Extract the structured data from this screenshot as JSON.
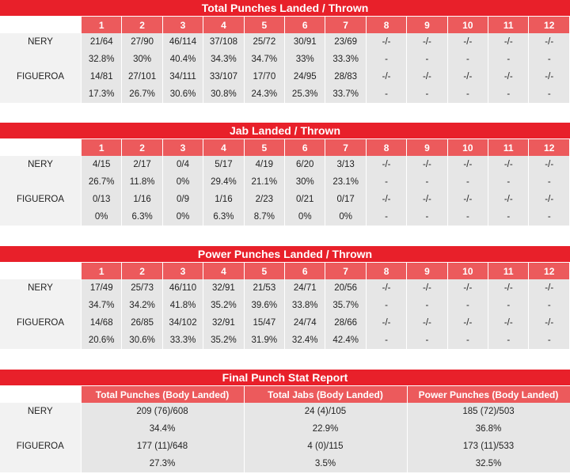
{
  "sections": [
    {
      "title": "Total Punches Landed / Thrown",
      "rounds": [
        "1",
        "2",
        "3",
        "4",
        "5",
        "6",
        "7",
        "8",
        "9",
        "10",
        "11",
        "12"
      ],
      "rows": [
        {
          "name": "NERY",
          "landed": [
            "21/64",
            "27/90",
            "46/114",
            "37/108",
            "25/72",
            "30/91",
            "23/69",
            "-/-",
            "-/-",
            "-/-",
            "-/-",
            "-/-"
          ],
          "pct": [
            "32.8%",
            "30%",
            "40.4%",
            "34.3%",
            "34.7%",
            "33%",
            "33.3%",
            "-",
            "-",
            "-",
            "-",
            "-"
          ]
        },
        {
          "name": "FIGUEROA",
          "landed": [
            "14/81",
            "27/101",
            "34/111",
            "33/107",
            "17/70",
            "24/95",
            "28/83",
            "-/-",
            "-/-",
            "-/-",
            "-/-",
            "-/-"
          ],
          "pct": [
            "17.3%",
            "26.7%",
            "30.6%",
            "30.8%",
            "24.3%",
            "25.3%",
            "33.7%",
            "-",
            "-",
            "-",
            "-",
            "-"
          ]
        }
      ]
    },
    {
      "title": "Jab Landed / Thrown",
      "rounds": [
        "1",
        "2",
        "3",
        "4",
        "5",
        "6",
        "7",
        "8",
        "9",
        "10",
        "11",
        "12"
      ],
      "rows": [
        {
          "name": "NERY",
          "landed": [
            "4/15",
            "2/17",
            "0/4",
            "5/17",
            "4/19",
            "6/20",
            "3/13",
            "-/-",
            "-/-",
            "-/-",
            "-/-",
            "-/-"
          ],
          "pct": [
            "26.7%",
            "11.8%",
            "0%",
            "29.4%",
            "21.1%",
            "30%",
            "23.1%",
            "-",
            "-",
            "-",
            "-",
            "-"
          ]
        },
        {
          "name": "FIGUEROA",
          "landed": [
            "0/13",
            "1/16",
            "0/9",
            "1/16",
            "2/23",
            "0/21",
            "0/17",
            "-/-",
            "-/-",
            "-/-",
            "-/-",
            "-/-"
          ],
          "pct": [
            "0%",
            "6.3%",
            "0%",
            "6.3%",
            "8.7%",
            "0%",
            "0%",
            "-",
            "-",
            "-",
            "-",
            "-"
          ]
        }
      ]
    },
    {
      "title": "Power Punches Landed / Thrown",
      "rounds": [
        "1",
        "2",
        "3",
        "4",
        "5",
        "6",
        "7",
        "8",
        "9",
        "10",
        "11",
        "12"
      ],
      "rows": [
        {
          "name": "NERY",
          "landed": [
            "17/49",
            "25/73",
            "46/110",
            "32/91",
            "21/53",
            "24/71",
            "20/56",
            "-/-",
            "-/-",
            "-/-",
            "-/-",
            "-/-"
          ],
          "pct": [
            "34.7%",
            "34.2%",
            "41.8%",
            "35.2%",
            "39.6%",
            "33.8%",
            "35.7%",
            "-",
            "-",
            "-",
            "-",
            "-"
          ]
        },
        {
          "name": "FIGUEROA",
          "landed": [
            "14/68",
            "26/85",
            "34/102",
            "32/91",
            "15/47",
            "24/74",
            "28/66",
            "-/-",
            "-/-",
            "-/-",
            "-/-",
            "-/-"
          ],
          "pct": [
            "20.6%",
            "30.6%",
            "33.3%",
            "35.2%",
            "31.9%",
            "32.4%",
            "42.4%",
            "-",
            "-",
            "-",
            "-",
            "-"
          ]
        }
      ]
    }
  ],
  "final": {
    "title": "Final Punch Stat Report",
    "headers": [
      "Total Punches (Body Landed)",
      "Total Jabs (Body Landed)",
      "Power Punches (Body Landed)"
    ],
    "rows": [
      {
        "name": "NERY",
        "values": [
          "209 (76)/608",
          "24 (4)/105",
          "185 (72)/503"
        ],
        "pct": [
          "34.4%",
          "22.9%",
          "36.8%"
        ]
      },
      {
        "name": "FIGUEROA",
        "values": [
          "177 (11)/648",
          "4 (0)/115",
          "173 (11)/533"
        ],
        "pct": [
          "27.3%",
          "3.5%",
          "32.5%"
        ]
      }
    ]
  }
}
